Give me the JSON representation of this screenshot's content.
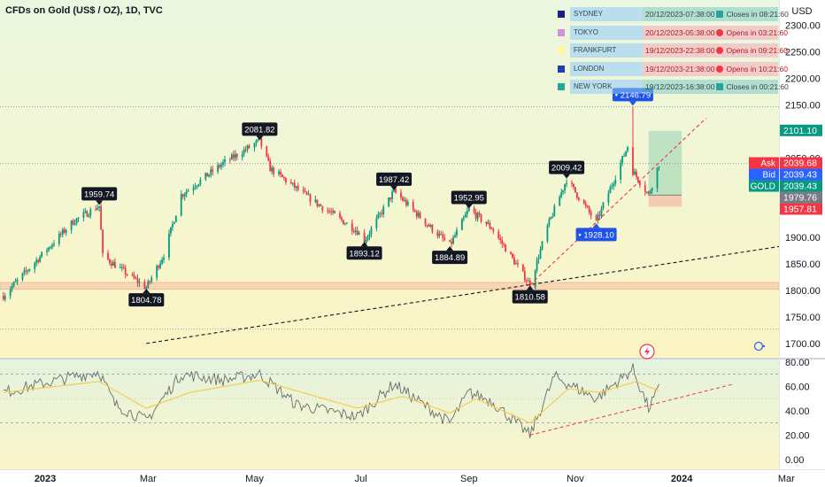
{
  "title": "CFDs on Gold (US$ / OZ), 1D, TVC",
  "currency": "USD",
  "sessions": [
    {
      "name": "SYDNEY",
      "datetime": "20/12/2023-07:38:00",
      "status": "Closes in 08:21:60",
      "color": "#1a237e",
      "state": "open"
    },
    {
      "name": "TOKYO",
      "datetime": "20/12/2023-05:38:00",
      "status": "Opens in 03:21:60",
      "color": "#ce93d8",
      "state": "closed"
    },
    {
      "name": "FRANKFURT",
      "datetime": "19/12/2023-22:38:00",
      "status": "Opens in 09:21:60",
      "color": "#fff59d",
      "state": "closed"
    },
    {
      "name": "LONDON",
      "datetime": "19/12/2023-21:38:00",
      "status": "Opens in 10:21:60",
      "color": "#1e40af",
      "state": "closed"
    },
    {
      "name": "NEW YORK",
      "datetime": "19/12/2023-16:38:00",
      "status": "Closes in 00:21:60",
      "color": "#26a69a",
      "state": "open"
    }
  ],
  "chart_data": [
    {
      "type": "candlestick",
      "x_ticks": [
        "2023",
        "Mar",
        "May",
        "Jul",
        "Sep",
        "Nov",
        "2024",
        "Mar"
      ],
      "y_ticks": [
        1700,
        1750,
        1800,
        1850,
        1900,
        1950,
        2000,
        2050,
        2100,
        2150,
        2200,
        2250,
        2300
      ],
      "ylim": [
        1673,
        2348
      ],
      "anchors": [
        {
          "date": "2022-12-08",
          "price": 1790
        },
        {
          "date": "2023-01-17",
          "price": 1930
        },
        {
          "date": "2023-02-01",
          "price": 1959.74
        },
        {
          "date": "2023-02-03",
          "price": 1865
        },
        {
          "date": "2023-02-28",
          "price": 1804.78
        },
        {
          "date": "2023-03-10",
          "price": 1868
        },
        {
          "date": "2023-03-20",
          "price": 1980
        },
        {
          "date": "2023-04-13",
          "price": 2040
        },
        {
          "date": "2023-05-04",
          "price": 2081.82
        },
        {
          "date": "2023-05-10",
          "price": 2030
        },
        {
          "date": "2023-06-01",
          "price": 1975
        },
        {
          "date": "2023-06-29",
          "price": 1912
        },
        {
          "date": "2023-07-03",
          "price": 1893.12
        },
        {
          "date": "2023-07-20",
          "price": 1987.42
        },
        {
          "date": "2023-08-08",
          "price": 1925
        },
        {
          "date": "2023-08-21",
          "price": 1884.89
        },
        {
          "date": "2023-09-01",
          "price": 1952.95
        },
        {
          "date": "2023-09-14",
          "price": 1918
        },
        {
          "date": "2023-10-06",
          "price": 1810.58
        },
        {
          "date": "2023-10-16",
          "price": 1920
        },
        {
          "date": "2023-10-27",
          "price": 2009.42
        },
        {
          "date": "2023-11-13",
          "price": 1928.1
        },
        {
          "date": "2023-12-01",
          "price": 2072
        },
        {
          "date": "2023-12-04",
          "price": 2025
        },
        {
          "date": "2023-12-13",
          "price": 1980
        },
        {
          "date": "2023-12-19",
          "price": 2039.43
        }
      ],
      "labels": [
        {
          "date": "2023-02-01",
          "price": 1959.74,
          "text": "1959.74",
          "pos": "above"
        },
        {
          "date": "2023-02-28",
          "price": 1804.78,
          "text": "1804.78",
          "pos": "below"
        },
        {
          "date": "2023-05-04",
          "price": 2081.82,
          "text": "2081.82",
          "pos": "above"
        },
        {
          "date": "2023-07-03",
          "price": 1893.12,
          "text": "1893.12",
          "pos": "below"
        },
        {
          "date": "2023-07-20",
          "price": 1987.42,
          "text": "1987.42",
          "pos": "above"
        },
        {
          "date": "2023-08-21",
          "price": 1884.89,
          "text": "1884.89",
          "pos": "below"
        },
        {
          "date": "2023-09-01",
          "price": 1952.95,
          "text": "1952.95",
          "pos": "above"
        },
        {
          "date": "2023-10-06",
          "price": 1810.58,
          "text": "1810.58",
          "pos": "below"
        },
        {
          "date": "2023-10-27",
          "price": 2009.42,
          "text": "2009.42",
          "pos": "above"
        },
        {
          "date": "2023-11-13",
          "price": 1928.1,
          "text": "1928.10",
          "pos": "below",
          "style": "blue"
        },
        {
          "date": "2023-12-04",
          "price": 2146.79,
          "text": "2146.79",
          "pos": "above",
          "style": "blue"
        }
      ],
      "spike_high": {
        "date": "2023-12-04",
        "price": 2146.79
      },
      "price_tags": [
        {
          "label": "",
          "value": "2101.10",
          "price": 2101.1,
          "color": "#089981"
        },
        {
          "label": "Ask",
          "value": "2039.68",
          "price": 2039.68,
          "color": "#f23645"
        },
        {
          "label": "Bid",
          "value": "2039.43",
          "price": 2039.43,
          "color": "#2962ff"
        },
        {
          "label": "GOLD",
          "value": "2039.43",
          "price": 2039.43,
          "color": "#089981"
        },
        {
          "label": "",
          "value": "1979.76",
          "price": 1979.76,
          "color": "#787b86"
        },
        {
          "label": "",
          "value": "1957.81",
          "price": 1957.81,
          "color": "#f23645"
        }
      ],
      "support_zone": [
        1802,
        1815
      ],
      "position": {
        "start": "2023-12-13",
        "end": "2024-01-01",
        "entry": 1979.76,
        "target": 2101.1,
        "stop": 1957.81
      },
      "trendlines": [
        {
          "from": {
            "date": "2023-02-28",
            "price": 1700
          },
          "to": {
            "date": "2024-03-31",
            "price": 1900
          },
          "color": "#131722"
        },
        {
          "from": {
            "date": "2023-10-06",
            "price": 1810.58
          },
          "to": {
            "date": "2024-01-15",
            "price": 2125
          },
          "color": "#f23645"
        }
      ]
    },
    {
      "type": "line",
      "y_ticks": [
        0,
        20,
        40,
        60,
        80
      ],
      "ylim": [
        -8,
        82
      ],
      "bands": [
        30,
        70
      ],
      "series": [
        {
          "anchors": [
            {
              "date": "2022-12-08",
              "v": 55
            },
            {
              "date": "2023-01-17",
              "v": 68
            },
            {
              "date": "2023-02-01",
              "v": 72
            },
            {
              "date": "2023-02-10",
              "v": 45
            },
            {
              "date": "2023-02-28",
              "v": 32
            },
            {
              "date": "2023-03-20",
              "v": 70
            },
            {
              "date": "2023-04-13",
              "v": 65
            },
            {
              "date": "2023-05-04",
              "v": 70
            },
            {
              "date": "2023-05-25",
              "v": 45
            },
            {
              "date": "2023-06-29",
              "v": 35
            },
            {
              "date": "2023-07-20",
              "v": 62
            },
            {
              "date": "2023-08-21",
              "v": 30
            },
            {
              "date": "2023-09-01",
              "v": 55
            },
            {
              "date": "2023-09-14",
              "v": 48
            },
            {
              "date": "2023-10-06",
              "v": 20
            },
            {
              "date": "2023-10-20",
              "v": 68
            },
            {
              "date": "2023-11-13",
              "v": 50
            },
            {
              "date": "2023-12-04",
              "v": 74
            },
            {
              "date": "2023-12-13",
              "v": 42
            },
            {
              "date": "2023-12-19",
              "v": 58
            }
          ],
          "color": "#6b6b6b"
        },
        {
          "anchors": [
            {
              "date": "2022-12-08",
              "v": 55
            },
            {
              "date": "2023-02-01",
              "v": 64
            },
            {
              "date": "2023-02-28",
              "v": 42
            },
            {
              "date": "2023-03-25",
              "v": 55
            },
            {
              "date": "2023-05-04",
              "v": 65
            },
            {
              "date": "2023-06-29",
              "v": 42
            },
            {
              "date": "2023-07-25",
              "v": 52
            },
            {
              "date": "2023-08-21",
              "v": 38
            },
            {
              "date": "2023-09-05",
              "v": 50
            },
            {
              "date": "2023-10-06",
              "v": 30
            },
            {
              "date": "2023-10-28",
              "v": 58
            },
            {
              "date": "2023-11-15",
              "v": 55
            },
            {
              "date": "2023-12-06",
              "v": 64
            },
            {
              "date": "2023-12-19",
              "v": 56
            }
          ],
          "color": "#f7c948"
        }
      ],
      "trendline": {
        "from": {
          "date": "2023-10-06",
          "v": 20
        },
        "to": {
          "date": "2024-01-31",
          "v": 62
        }
      }
    }
  ]
}
